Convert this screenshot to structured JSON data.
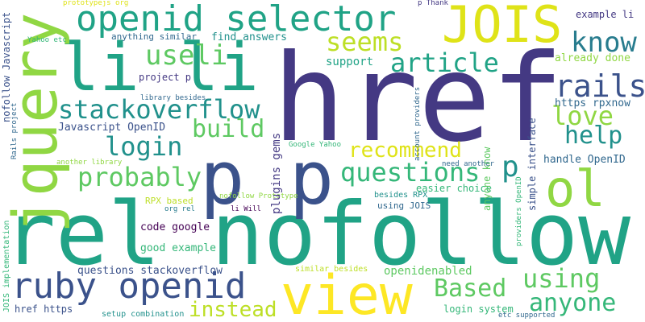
{
  "words": [
    "href",
    "nofollow",
    "rel",
    "li li",
    "jquery",
    "p p",
    "view",
    "openid selector",
    "ruby openid",
    "JOIS",
    "ol",
    "know",
    "seems",
    "article",
    "uselі",
    "rails",
    "stackoverflow",
    "build",
    "love",
    "help",
    "login",
    "recommend",
    "probably",
    "questions",
    "p",
    "Based",
    "using",
    "anyone",
    "instead",
    "already done",
    "https rpxnow",
    "handle OpenID",
    "Javascript OpenID",
    "project p",
    "find answers",
    "anything similar",
    "Yahoo etc",
    "prototypejs org",
    "p Thank",
    "example li",
    "library besides",
    "nofollow Javascript",
    "nofollow Prototype",
    "Rails project",
    "plugins gems",
    "Google Yahoo",
    "another library",
    "RPX based",
    "org rel",
    "li Will",
    "code google",
    "good example",
    "questions stackoverflow",
    "openidenabled",
    "JOIS implementation",
    "href https",
    "setup combination",
    "similar besides",
    "login system",
    "etc supported",
    "account providers",
    "anyone know",
    "simple interface",
    "providers OpenID",
    "easier choice",
    "need another",
    "besides RPX",
    "using JOIS",
    "support"
  ]
}
